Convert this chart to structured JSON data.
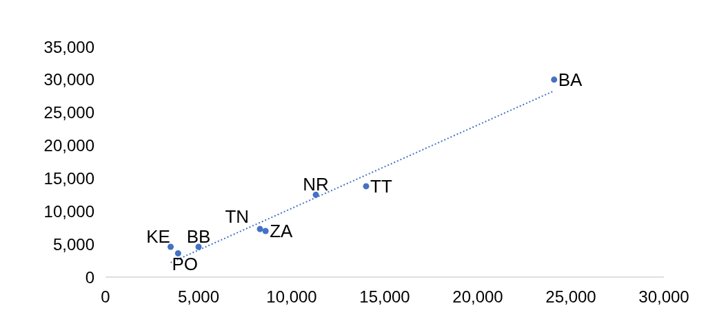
{
  "chart_data": {
    "type": "scatter",
    "xlim": [
      0,
      30000
    ],
    "ylim": [
      0,
      35000
    ],
    "xticks": [
      {
        "value": 0,
        "label": "0"
      },
      {
        "value": 5000,
        "label": "5,000"
      },
      {
        "value": 10000,
        "label": "10,000"
      },
      {
        "value": 15000,
        "label": "15,000"
      },
      {
        "value": 20000,
        "label": "20,000"
      },
      {
        "value": 25000,
        "label": "25,000"
      },
      {
        "value": 30000,
        "label": "30,000"
      }
    ],
    "yticks": [
      {
        "value": 0,
        "label": "0"
      },
      {
        "value": 5000,
        "label": "5,000"
      },
      {
        "value": 10000,
        "label": "10,000"
      },
      {
        "value": 15000,
        "label": "15,000"
      },
      {
        "value": 20000,
        "label": "20,000"
      },
      {
        "value": 25000,
        "label": "25,000"
      },
      {
        "value": 30000,
        "label": "30,000"
      },
      {
        "value": 35000,
        "label": "35,000"
      }
    ],
    "grid": false,
    "legend": false,
    "marker": "circle",
    "series": [
      {
        "color": "#4472c4",
        "x": [
          3500,
          3900,
          5000,
          8300,
          8600,
          11300,
          14000,
          24100
        ],
        "values": [
          4600,
          3600,
          4600,
          7300,
          7000,
          12500,
          13800,
          30000
        ]
      },
      {
        "type": "line",
        "color": "#4472c4",
        "line_style": "dotted",
        "marker": "none",
        "x": [
          3500,
          24100
        ],
        "values": [
          2200,
          28300
        ]
      }
    ],
    "annotations": [
      {
        "text": "KE",
        "x": 3500,
        "y": 4600
      },
      {
        "text": "PO",
        "x": 3900,
        "y": 3600
      },
      {
        "text": "BB",
        "x": 5000,
        "y": 4600
      },
      {
        "text": "TN",
        "x": 8300,
        "y": 7300
      },
      {
        "text": "ZA",
        "x": 8600,
        "y": 7000
      },
      {
        "text": "NR",
        "x": 11300,
        "y": 12500
      },
      {
        "text": "TT",
        "x": 14000,
        "y": 13800
      },
      {
        "text": "BA",
        "x": 24100,
        "y": 30000
      }
    ]
  }
}
